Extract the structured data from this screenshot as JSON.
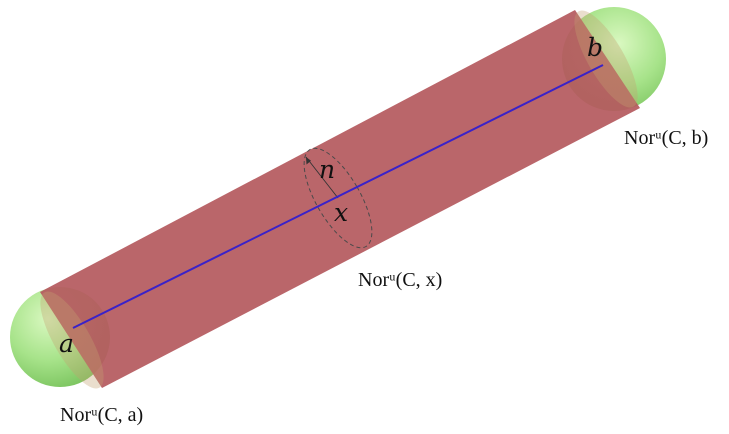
{
  "labels": {
    "endpoint_a": "a",
    "endpoint_b": "b",
    "point_x": "x",
    "normal_vector": "n",
    "normal_set_a": "Norᵘ(C, a)",
    "normal_set_b": "Norᵘ(C, b)",
    "normal_set_x": "Norᵘ(C, x)"
  },
  "colors": {
    "tube_fill": "#c9686c",
    "tube_highlight": "#f0b4b2",
    "cap_fill": "#9ddf80",
    "cap_highlight": "#d2f7b6",
    "axis_line": "#3a22c8",
    "circle_stroke": "#4a4a4a"
  }
}
